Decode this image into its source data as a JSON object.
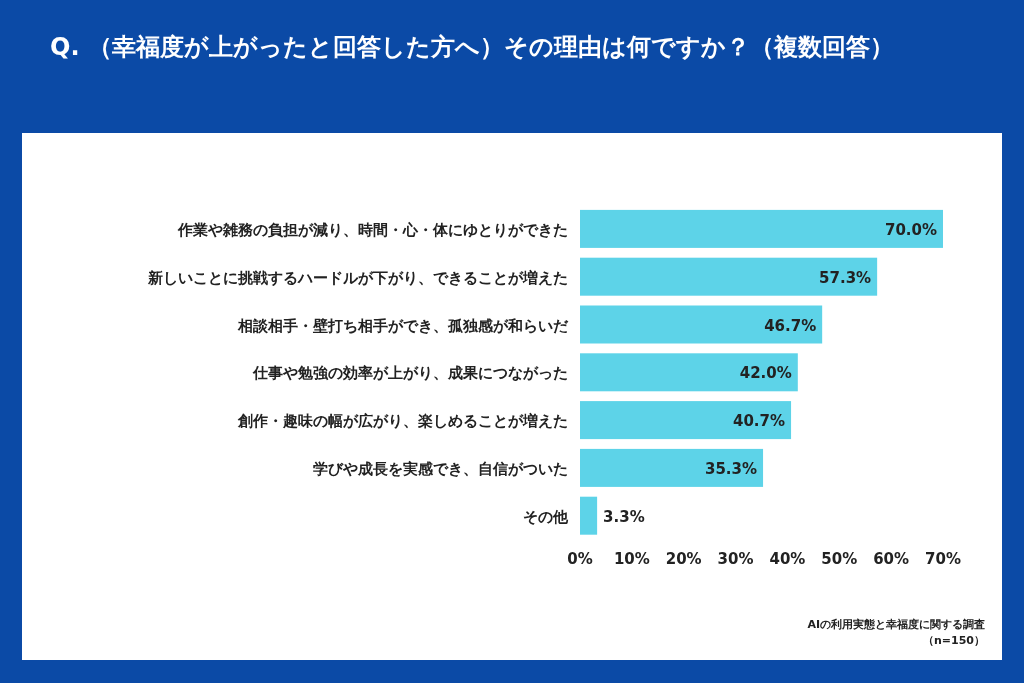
{
  "chart_data": {
    "type": "bar",
    "orientation": "horizontal",
    "title": "Q. （幸福度が上がったと回答した方へ）その理由は何ですか？（複数回答）",
    "categories": [
      "作業や雑務の負担が減り、時間・心・体にゆとりができた",
      "新しいことに挑戦するハードルが下がり、できることが増えた",
      "相談相手・壁打ち相手ができ、孤独感が和らいだ",
      "仕事や勉強の効率が上がり、成果につながった",
      "創作・趣味の幅が広がり、楽しめることが増えた",
      "学びや成長を実感でき、自信がついた",
      "その他"
    ],
    "values": [
      70.0,
      57.3,
      46.7,
      42.0,
      40.7,
      35.3,
      3.3
    ],
    "value_labels": [
      "70.0%",
      "57.3%",
      "46.7%",
      "42.0%",
      "40.7%",
      "35.3%",
      "3.3%"
    ],
    "color": "#5dd3e8",
    "xlim": [
      0,
      70
    ],
    "xticks": [
      {
        "value": 0,
        "label": "0%"
      },
      {
        "value": 10,
        "label": "10%"
      },
      {
        "value": 20,
        "label": "20%"
      },
      {
        "value": 30,
        "label": "30%"
      },
      {
        "value": 40,
        "label": "40%"
      },
      {
        "value": 50,
        "label": "50%"
      },
      {
        "value": 60,
        "label": "60%"
      },
      {
        "value": 70,
        "label": "70%"
      }
    ],
    "annotations": [
      "AIの利用実態と幸福度に関する調査",
      "（n=150）"
    ]
  }
}
